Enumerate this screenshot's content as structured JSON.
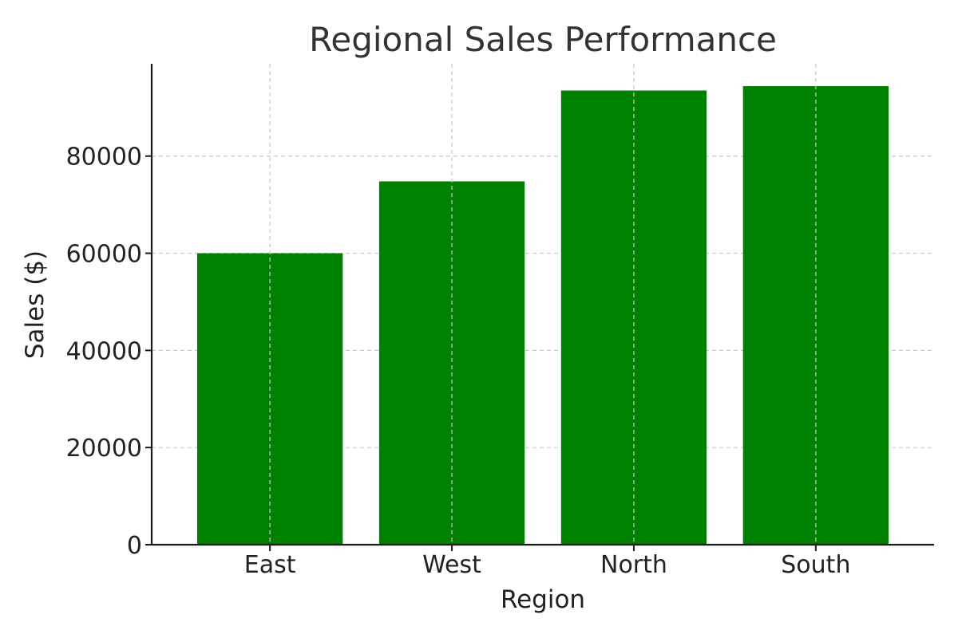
{
  "chart_data": {
    "type": "bar",
    "title": "Regional Sales Performance",
    "xlabel": "Region",
    "ylabel": "Sales ($)",
    "categories": [
      "East",
      "West",
      "North",
      "South"
    ],
    "values": [
      60000,
      74800,
      93500,
      94400
    ],
    "ylim": [
      0,
      99000
    ],
    "yticks": [
      0,
      20000,
      40000,
      60000,
      80000
    ],
    "bar_color": "#008000",
    "grid": true,
    "grid_axes": "both"
  }
}
